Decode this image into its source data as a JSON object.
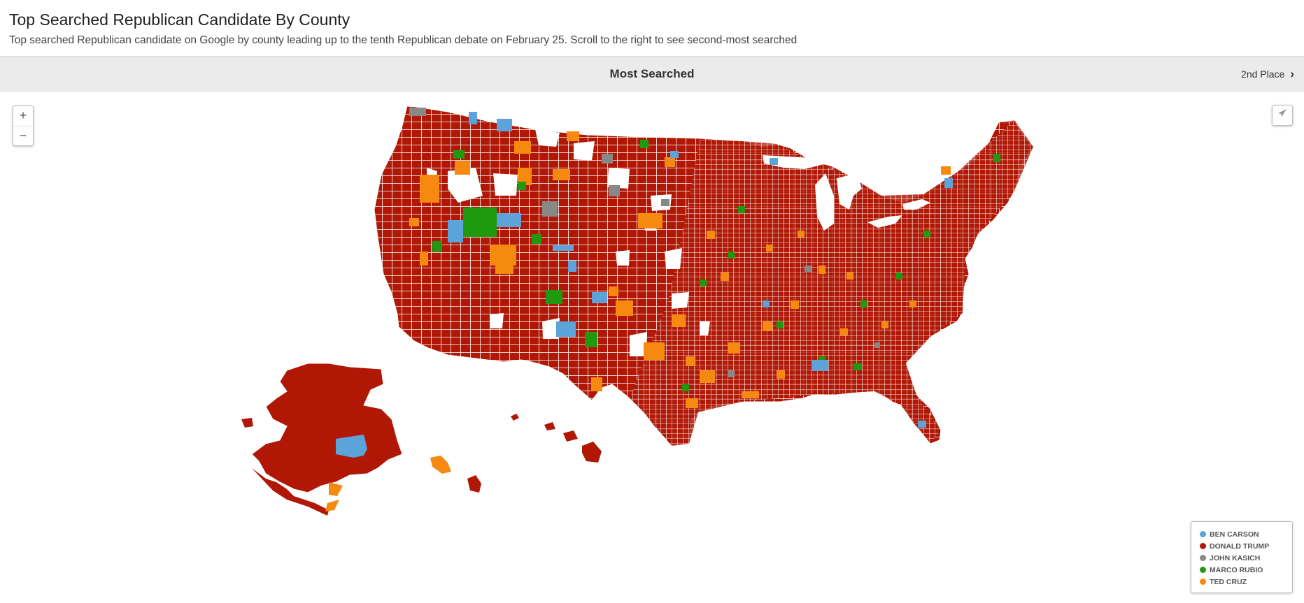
{
  "header": {
    "title": "Top Searched Republican Candidate By County",
    "subtitle": "Top searched Republican candidate on Google by county leading up to the tenth Republican debate on February 25. Scroll to the right to see second-most searched"
  },
  "tabs": {
    "current": "Most Searched",
    "next_label": "2nd Place"
  },
  "map_controls": {
    "zoom_in": "+",
    "zoom_out": "−",
    "zoom_in_icon": "plus-icon",
    "zoom_out_icon": "minus-icon",
    "share_icon": "paper-plane-icon"
  },
  "legend": [
    {
      "label": "BEN CARSON",
      "color": "#5ba3d9"
    },
    {
      "label": "DONALD TRUMP",
      "color": "#b01705"
    },
    {
      "label": "JOHN KASICH",
      "color": "#888888"
    },
    {
      "label": "MARCO RUBIO",
      "color": "#1f9a10"
    },
    {
      "label": "TED CRUZ",
      "color": "#f6890f"
    }
  ]
}
